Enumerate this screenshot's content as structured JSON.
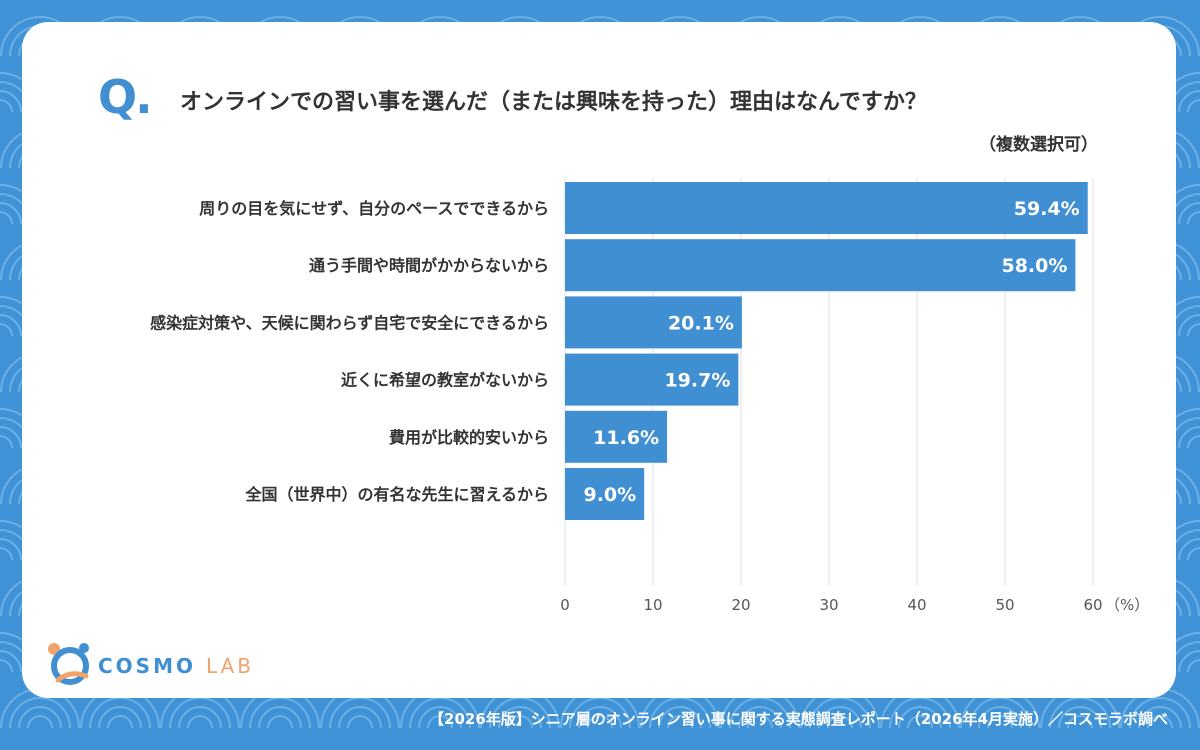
{
  "question": {
    "mark": "Q.",
    "title": "オンラインでの習い事を選んだ（または興味を持った）理由はなんですか？",
    "note": "（複数選択可）"
  },
  "chart_data": {
    "type": "bar",
    "orientation": "horizontal",
    "categories": [
      "周りの目を気にせず、自分のペースでできるから",
      "通う手間や時間がかからないから",
      "感染症対策や、天候に関わらず自宅で安全にできるから",
      "近くに希望の教室がないから",
      "費用が比較的安いから",
      "全国（世界中）の有名な先生に習えるから"
    ],
    "values": [
      59.4,
      58.0,
      20.1,
      19.7,
      11.6,
      9.0
    ],
    "value_labels": [
      "59.4%",
      "58.0%",
      "20.1%",
      "19.7%",
      "11.6%",
      "9.0%"
    ],
    "xlim": [
      0,
      60
    ],
    "xticks": [
      "0",
      "10",
      "20",
      "30",
      "40",
      "50",
      "60"
    ],
    "unit_label": "（%）",
    "grid": true,
    "bar_color": "#3f8fd2",
    "grid_color": "#dde3e8"
  },
  "logo": {
    "main": "COSMO",
    "sub": "LAB"
  },
  "footer": "【2026年版】シニア層のオンライン習い事に関する実態調査レポート（2026年4月実施）／コスモラボ調べ",
  "colors": {
    "background": "#3f92d6",
    "accent": "#3f8fd2",
    "logo_orange": "#f0a36a"
  }
}
